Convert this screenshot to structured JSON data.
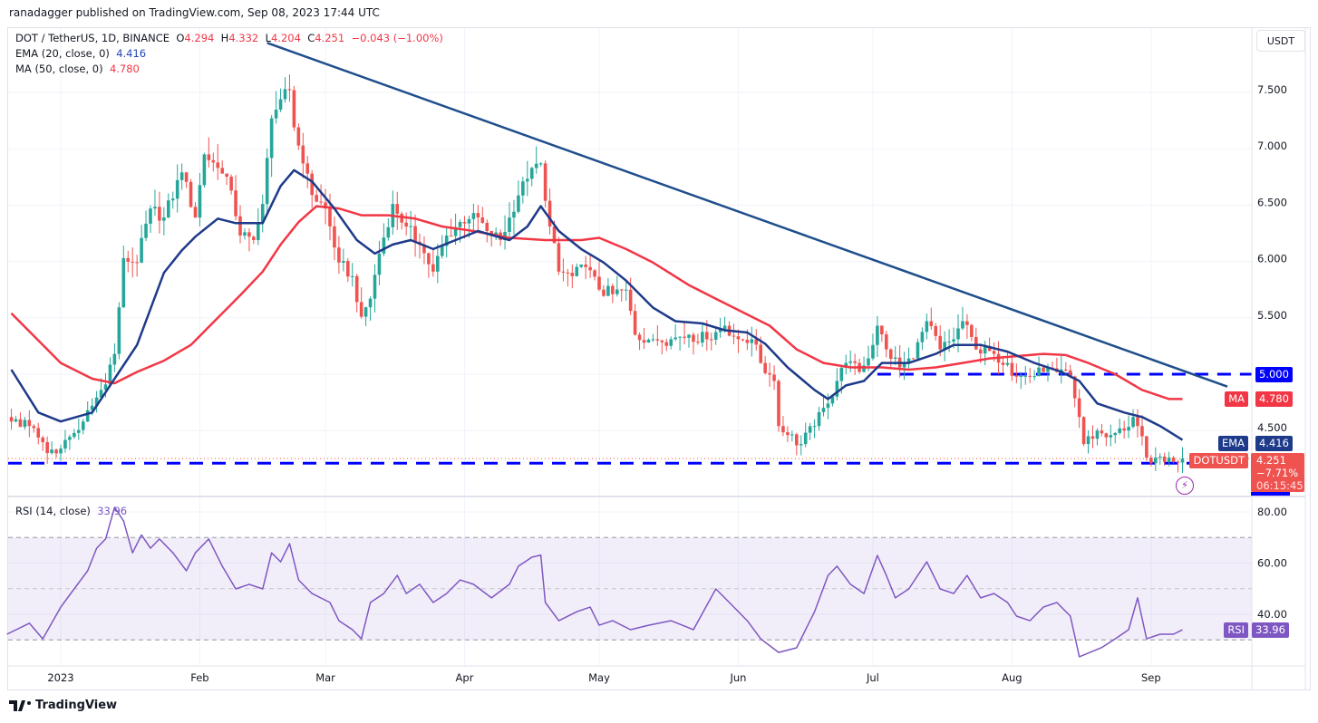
{
  "publisher_line": "ranadagger published on TradingView.com, Sep 08, 2023 17:44 UTC",
  "legend": {
    "symbol": "DOT / TetherUS, 1D, BINANCE",
    "o_label": "O",
    "o": "4.294",
    "h_label": "H",
    "h": "4.332",
    "l_label": "L",
    "l": "4.204",
    "c_label": "C",
    "c": "4.251",
    "change": "−0.043 (−1.00%)",
    "ema_label": "EMA (20, close, 0)",
    "ema_value": "4.416",
    "ma_label": "MA (50, close, 0)",
    "ma_value": "4.780",
    "rsi_label": "RSI (14, close)",
    "rsi_value": "33.96"
  },
  "currency_button": "USDT",
  "price_tags": {
    "level_5": "5.000",
    "ma_name": "MA",
    "ma": "4.780",
    "ema_name": "EMA",
    "ema": "4.416",
    "symbol_name": "DOTUSDT",
    "last": "4.251",
    "pct": "−7.71%",
    "countdown": "06:15:45",
    "rsi_name": "RSI",
    "rsi": "33.96"
  },
  "logo_text": "TradingView",
  "colors": {
    "up": "#26a69a",
    "down": "#ef5350",
    "ema": "#1e3a8a",
    "ma": "#f23645",
    "trendline": "#1f4e8c",
    "level": "#0000ff",
    "rsi": "#7e57c2"
  },
  "chart_data": [
    {
      "type": "candlestick",
      "title": "DOT / TetherUS, 1D, BINANCE",
      "y_ticks": [
        "7.500",
        "7.000",
        "6.500",
        "6.000",
        "5.500",
        "5.000",
        "4.500"
      ],
      "y_range": [
        3.95,
        7.95
      ],
      "x_ticks": [
        "2023",
        "Feb",
        "Mar",
        "Apr",
        "May",
        "Jun",
        "Jul",
        "Aug",
        "Sep"
      ],
      "x_tick_dates": [
        "2023-01-01",
        "2023-02-01",
        "2023-03-01",
        "2023-04-01",
        "2023-05-01",
        "2023-06-01",
        "2023-07-01",
        "2023-08-01",
        "2023-09-01"
      ],
      "x_range": [
        "2022-12-20",
        "2023-09-23"
      ],
      "grid": true,
      "close_path": [
        [
          "2022-12-21",
          4.58
        ],
        [
          "2022-12-25",
          4.54
        ],
        [
          "2022-12-29",
          4.3
        ],
        [
          "2023-01-01",
          4.34
        ],
        [
          "2023-01-06",
          4.58
        ],
        [
          "2023-01-10",
          4.86
        ],
        [
          "2023-01-13",
          5.18
        ],
        [
          "2023-01-15",
          6.03
        ],
        [
          "2023-01-18",
          5.99
        ],
        [
          "2023-01-21",
          6.47
        ],
        [
          "2023-01-24",
          6.39
        ],
        [
          "2023-01-28",
          6.79
        ],
        [
          "2023-01-31",
          6.39
        ],
        [
          "2023-02-02",
          6.95
        ],
        [
          "2023-02-05",
          6.83
        ],
        [
          "2023-02-08",
          6.63
        ],
        [
          "2023-02-10",
          6.23
        ],
        [
          "2023-02-13",
          6.19
        ],
        [
          "2023-02-15",
          6.51
        ],
        [
          "2023-02-17",
          7.27
        ],
        [
          "2023-02-19",
          7.44
        ],
        [
          "2023-02-21",
          7.52
        ],
        [
          "2023-02-22",
          7.19
        ],
        [
          "2023-02-24",
          6.87
        ],
        [
          "2023-02-26",
          6.59
        ],
        [
          "2023-03-01",
          6.47
        ],
        [
          "2023-03-04",
          5.99
        ],
        [
          "2023-03-07",
          5.87
        ],
        [
          "2023-03-09",
          5.51
        ],
        [
          "2023-03-11",
          5.67
        ],
        [
          "2023-03-13",
          6.07
        ],
        [
          "2023-03-16",
          6.51
        ],
        [
          "2023-03-19",
          6.31
        ],
        [
          "2023-03-22",
          6.15
        ],
        [
          "2023-03-25",
          5.91
        ],
        [
          "2023-03-28",
          6.23
        ],
        [
          "2023-03-31",
          6.35
        ],
        [
          "2023-04-03",
          6.43
        ],
        [
          "2023-04-06",
          6.27
        ],
        [
          "2023-04-09",
          6.19
        ],
        [
          "2023-04-11",
          6.39
        ],
        [
          "2023-04-14",
          6.71
        ],
        [
          "2023-04-16",
          6.83
        ],
        [
          "2023-04-18",
          6.87
        ],
        [
          "2023-04-20",
          6.31
        ],
        [
          "2023-04-22",
          5.91
        ],
        [
          "2023-04-25",
          5.87
        ],
        [
          "2023-04-28",
          5.95
        ],
        [
          "2023-05-01",
          5.75
        ],
        [
          "2023-05-04",
          5.71
        ],
        [
          "2023-05-07",
          5.75
        ],
        [
          "2023-05-09",
          5.35
        ],
        [
          "2023-05-13",
          5.31
        ],
        [
          "2023-05-17",
          5.31
        ],
        [
          "2023-05-21",
          5.35
        ],
        [
          "2023-05-25",
          5.31
        ],
        [
          "2023-05-29",
          5.43
        ],
        [
          "2023-06-01",
          5.31
        ],
        [
          "2023-06-04",
          5.31
        ],
        [
          "2023-06-06",
          5.1
        ],
        [
          "2023-06-09",
          4.94
        ],
        [
          "2023-06-10",
          4.54
        ],
        [
          "2023-06-12",
          4.46
        ],
        [
          "2023-06-15",
          4.38
        ],
        [
          "2023-06-18",
          4.54
        ],
        [
          "2023-06-21",
          4.74
        ],
        [
          "2023-06-23",
          4.94
        ],
        [
          "2023-06-25",
          5.1
        ],
        [
          "2023-06-28",
          5.02
        ],
        [
          "2023-06-30",
          5.14
        ],
        [
          "2023-07-02",
          5.43
        ],
        [
          "2023-07-04",
          5.22
        ],
        [
          "2023-07-07",
          5.06
        ],
        [
          "2023-07-10",
          5.14
        ],
        [
          "2023-07-13",
          5.47
        ],
        [
          "2023-07-16",
          5.22
        ],
        [
          "2023-07-19",
          5.31
        ],
        [
          "2023-07-21",
          5.47
        ],
        [
          "2023-07-24",
          5.22
        ],
        [
          "2023-07-28",
          5.18
        ],
        [
          "2023-07-31",
          5.1
        ],
        [
          "2023-08-02",
          4.98
        ],
        [
          "2023-08-05",
          4.98
        ],
        [
          "2023-08-08",
          5.02
        ],
        [
          "2023-08-11",
          5.02
        ],
        [
          "2023-08-14",
          4.98
        ],
        [
          "2023-08-16",
          4.62
        ],
        [
          "2023-08-17",
          4.38
        ],
        [
          "2023-08-20",
          4.5
        ],
        [
          "2023-08-23",
          4.46
        ],
        [
          "2023-08-26",
          4.5
        ],
        [
          "2023-08-28",
          4.62
        ],
        [
          "2023-08-29",
          4.54
        ],
        [
          "2023-08-31",
          4.26
        ],
        [
          "2023-09-02",
          4.26
        ],
        [
          "2023-09-05",
          4.26
        ],
        [
          "2023-09-08",
          4.251
        ]
      ],
      "ema20": [
        [
          "2022-12-21",
          5.04
        ],
        [
          "2022-12-27",
          4.66
        ],
        [
          "2023-01-01",
          4.58
        ],
        [
          "2023-01-08",
          4.66
        ],
        [
          "2023-01-14",
          5.02
        ],
        [
          "2023-01-18",
          5.26
        ],
        [
          "2023-01-24",
          5.9
        ],
        [
          "2023-01-28",
          6.1
        ],
        [
          "2023-01-31",
          6.22
        ],
        [
          "2023-02-05",
          6.38
        ],
        [
          "2023-02-09",
          6.34
        ],
        [
          "2023-02-15",
          6.34
        ],
        [
          "2023-02-19",
          6.67
        ],
        [
          "2023-02-22",
          6.81
        ],
        [
          "2023-02-26",
          6.71
        ],
        [
          "2023-03-03",
          6.47
        ],
        [
          "2023-03-08",
          6.19
        ],
        [
          "2023-03-12",
          6.07
        ],
        [
          "2023-03-16",
          6.15
        ],
        [
          "2023-03-20",
          6.19
        ],
        [
          "2023-03-25",
          6.11
        ],
        [
          "2023-03-30",
          6.19
        ],
        [
          "2023-04-04",
          6.27
        ],
        [
          "2023-04-11",
          6.19
        ],
        [
          "2023-04-15",
          6.31
        ],
        [
          "2023-04-18",
          6.49
        ],
        [
          "2023-04-22",
          6.27
        ],
        [
          "2023-04-27",
          6.11
        ],
        [
          "2023-05-02",
          5.99
        ],
        [
          "2023-05-07",
          5.83
        ],
        [
          "2023-05-13",
          5.59
        ],
        [
          "2023-05-18",
          5.47
        ],
        [
          "2023-05-24",
          5.45
        ],
        [
          "2023-05-29",
          5.39
        ],
        [
          "2023-06-03",
          5.37
        ],
        [
          "2023-06-07",
          5.27
        ],
        [
          "2023-06-12",
          5.06
        ],
        [
          "2023-06-18",
          4.86
        ],
        [
          "2023-06-21",
          4.78
        ],
        [
          "2023-06-25",
          4.9
        ],
        [
          "2023-06-29",
          4.94
        ],
        [
          "2023-07-03",
          5.1
        ],
        [
          "2023-07-09",
          5.1
        ],
        [
          "2023-07-15",
          5.18
        ],
        [
          "2023-07-19",
          5.26
        ],
        [
          "2023-07-25",
          5.26
        ],
        [
          "2023-07-31",
          5.2
        ],
        [
          "2023-08-06",
          5.1
        ],
        [
          "2023-08-12",
          5.02
        ],
        [
          "2023-08-16",
          4.94
        ],
        [
          "2023-08-20",
          4.74
        ],
        [
          "2023-08-26",
          4.66
        ],
        [
          "2023-08-30",
          4.62
        ],
        [
          "2023-09-03",
          4.54
        ],
        [
          "2023-09-08",
          4.416
        ]
      ],
      "ma50": [
        [
          "2022-12-21",
          5.54
        ],
        [
          "2022-12-27",
          5.3
        ],
        [
          "2023-01-01",
          5.1
        ],
        [
          "2023-01-08",
          4.96
        ],
        [
          "2023-01-13",
          4.92
        ],
        [
          "2023-01-18",
          5.02
        ],
        [
          "2023-01-24",
          5.12
        ],
        [
          "2023-01-30",
          5.26
        ],
        [
          "2023-02-05",
          5.5
        ],
        [
          "2023-02-10",
          5.7
        ],
        [
          "2023-02-15",
          5.91
        ],
        [
          "2023-02-19",
          6.15
        ],
        [
          "2023-02-23",
          6.35
        ],
        [
          "2023-02-27",
          6.49
        ],
        [
          "2023-03-04",
          6.47
        ],
        [
          "2023-03-09",
          6.41
        ],
        [
          "2023-03-15",
          6.41
        ],
        [
          "2023-03-21",
          6.38
        ],
        [
          "2023-03-27",
          6.31
        ],
        [
          "2023-04-03",
          6.27
        ],
        [
          "2023-04-11",
          6.21
        ],
        [
          "2023-04-19",
          6.19
        ],
        [
          "2023-04-27",
          6.19
        ],
        [
          "2023-05-01",
          6.21
        ],
        [
          "2023-05-07",
          6.11
        ],
        [
          "2023-05-13",
          5.99
        ],
        [
          "2023-05-21",
          5.79
        ],
        [
          "2023-05-27",
          5.67
        ],
        [
          "2023-06-02",
          5.55
        ],
        [
          "2023-06-08",
          5.43
        ],
        [
          "2023-06-14",
          5.22
        ],
        [
          "2023-06-20",
          5.1
        ],
        [
          "2023-06-26",
          5.06
        ],
        [
          "2023-07-03",
          5.06
        ],
        [
          "2023-07-09",
          5.04
        ],
        [
          "2023-07-15",
          5.06
        ],
        [
          "2023-07-21",
          5.1
        ],
        [
          "2023-07-27",
          5.14
        ],
        [
          "2023-08-02",
          5.16
        ],
        [
          "2023-08-08",
          5.18
        ],
        [
          "2023-08-13",
          5.17
        ],
        [
          "2023-08-18",
          5.1
        ],
        [
          "2023-08-24",
          5.0
        ],
        [
          "2023-08-30",
          4.86
        ],
        [
          "2023-09-05",
          4.78
        ],
        [
          "2023-09-08",
          4.78
        ]
      ],
      "trendline": [
        [
          "2023-02-16",
          7.94
        ],
        [
          "2023-09-18",
          4.89
        ]
      ],
      "horizontal_levels": [
        {
          "price": 5.0,
          "from": "2023-07-02"
        },
        {
          "price": 4.21,
          "from": "2022-12-20"
        }
      ]
    },
    {
      "type": "line",
      "title": "RSI (14, close)",
      "y_ticks": [
        "80.00",
        "60.00",
        "40.00"
      ],
      "band": [
        30,
        70
      ],
      "midline": 50,
      "values": [
        [
          "2022-12-20",
          32.2
        ],
        [
          "2022-12-25",
          36.5
        ],
        [
          "2022-12-28",
          30.4
        ],
        [
          "2023-01-01",
          42.8
        ],
        [
          "2023-01-04",
          49.9
        ],
        [
          "2023-01-07",
          57
        ],
        [
          "2023-01-09",
          65.8
        ],
        [
          "2023-01-11",
          69.4
        ],
        [
          "2023-01-13",
          81.8
        ],
        [
          "2023-01-15",
          76.5
        ],
        [
          "2023-01-17",
          64
        ],
        [
          "2023-01-19",
          71
        ],
        [
          "2023-01-21",
          65.8
        ],
        [
          "2023-01-23",
          69.4
        ],
        [
          "2023-01-26",
          64
        ],
        [
          "2023-01-29",
          57
        ],
        [
          "2023-01-31",
          64
        ],
        [
          "2023-02-03",
          69.4
        ],
        [
          "2023-02-06",
          58.8
        ],
        [
          "2023-02-09",
          49.9
        ],
        [
          "2023-02-12",
          51.7
        ],
        [
          "2023-02-15",
          49.9
        ],
        [
          "2023-02-17",
          64
        ],
        [
          "2023-02-19",
          60.5
        ],
        [
          "2023-02-21",
          67.6
        ],
        [
          "2023-02-23",
          53.4
        ],
        [
          "2023-02-26",
          48.1
        ],
        [
          "2023-03-02",
          44.6
        ],
        [
          "2023-03-04",
          37.5
        ],
        [
          "2023-03-07",
          34
        ],
        [
          "2023-03-09",
          30.4
        ],
        [
          "2023-03-11",
          44.6
        ],
        [
          "2023-03-14",
          48.1
        ],
        [
          "2023-03-17",
          55.2
        ],
        [
          "2023-03-19",
          48.1
        ],
        [
          "2023-03-22",
          51.7
        ],
        [
          "2023-03-25",
          44.6
        ],
        [
          "2023-03-28",
          48.1
        ],
        [
          "2023-03-31",
          53.4
        ],
        [
          "2023-04-03",
          51.7
        ],
        [
          "2023-04-07",
          46.4
        ],
        [
          "2023-04-11",
          51.7
        ],
        [
          "2023-04-13",
          58.8
        ],
        [
          "2023-04-16",
          62.3
        ],
        [
          "2023-04-18",
          63.1
        ],
        [
          "2023-04-19",
          44.6
        ],
        [
          "2023-04-22",
          37.5
        ],
        [
          "2023-04-26",
          41
        ],
        [
          "2023-04-29",
          42.8
        ],
        [
          "2023-05-01",
          35.7
        ],
        [
          "2023-05-04",
          37.5
        ],
        [
          "2023-05-08",
          34
        ],
        [
          "2023-05-12",
          35.7
        ],
        [
          "2023-05-17",
          37.5
        ],
        [
          "2023-05-22",
          34
        ],
        [
          "2023-05-27",
          49.9
        ],
        [
          "2023-05-30",
          44.6
        ],
        [
          "2023-06-03",
          37.5
        ],
        [
          "2023-06-06",
          30.4
        ],
        [
          "2023-06-10",
          25.1
        ],
        [
          "2023-06-14",
          26.9
        ],
        [
          "2023-06-18",
          41
        ],
        [
          "2023-06-21",
          55.2
        ],
        [
          "2023-06-23",
          58.8
        ],
        [
          "2023-06-26",
          51.7
        ],
        [
          "2023-06-29",
          48.1
        ],
        [
          "2023-07-02",
          63
        ],
        [
          "2023-07-04",
          55.2
        ],
        [
          "2023-07-06",
          46.4
        ],
        [
          "2023-07-09",
          49.9
        ],
        [
          "2023-07-13",
          60.5
        ],
        [
          "2023-07-16",
          49.9
        ],
        [
          "2023-07-19",
          48.1
        ],
        [
          "2023-07-22",
          55.2
        ],
        [
          "2023-07-25",
          46.4
        ],
        [
          "2023-07-28",
          48.1
        ],
        [
          "2023-07-31",
          44.6
        ],
        [
          "2023-08-02",
          39.3
        ],
        [
          "2023-08-05",
          37.5
        ],
        [
          "2023-08-08",
          42.8
        ],
        [
          "2023-08-11",
          44.6
        ],
        [
          "2023-08-14",
          39.3
        ],
        [
          "2023-08-16",
          23.4
        ],
        [
          "2023-08-21",
          27
        ],
        [
          "2023-08-24",
          30.4
        ],
        [
          "2023-08-27",
          34
        ],
        [
          "2023-08-29",
          46.4
        ],
        [
          "2023-08-31",
          30.4
        ],
        [
          "2023-09-03",
          32.2
        ],
        [
          "2023-09-06",
          32.2
        ],
        [
          "2023-09-08",
          33.96
        ]
      ]
    }
  ]
}
